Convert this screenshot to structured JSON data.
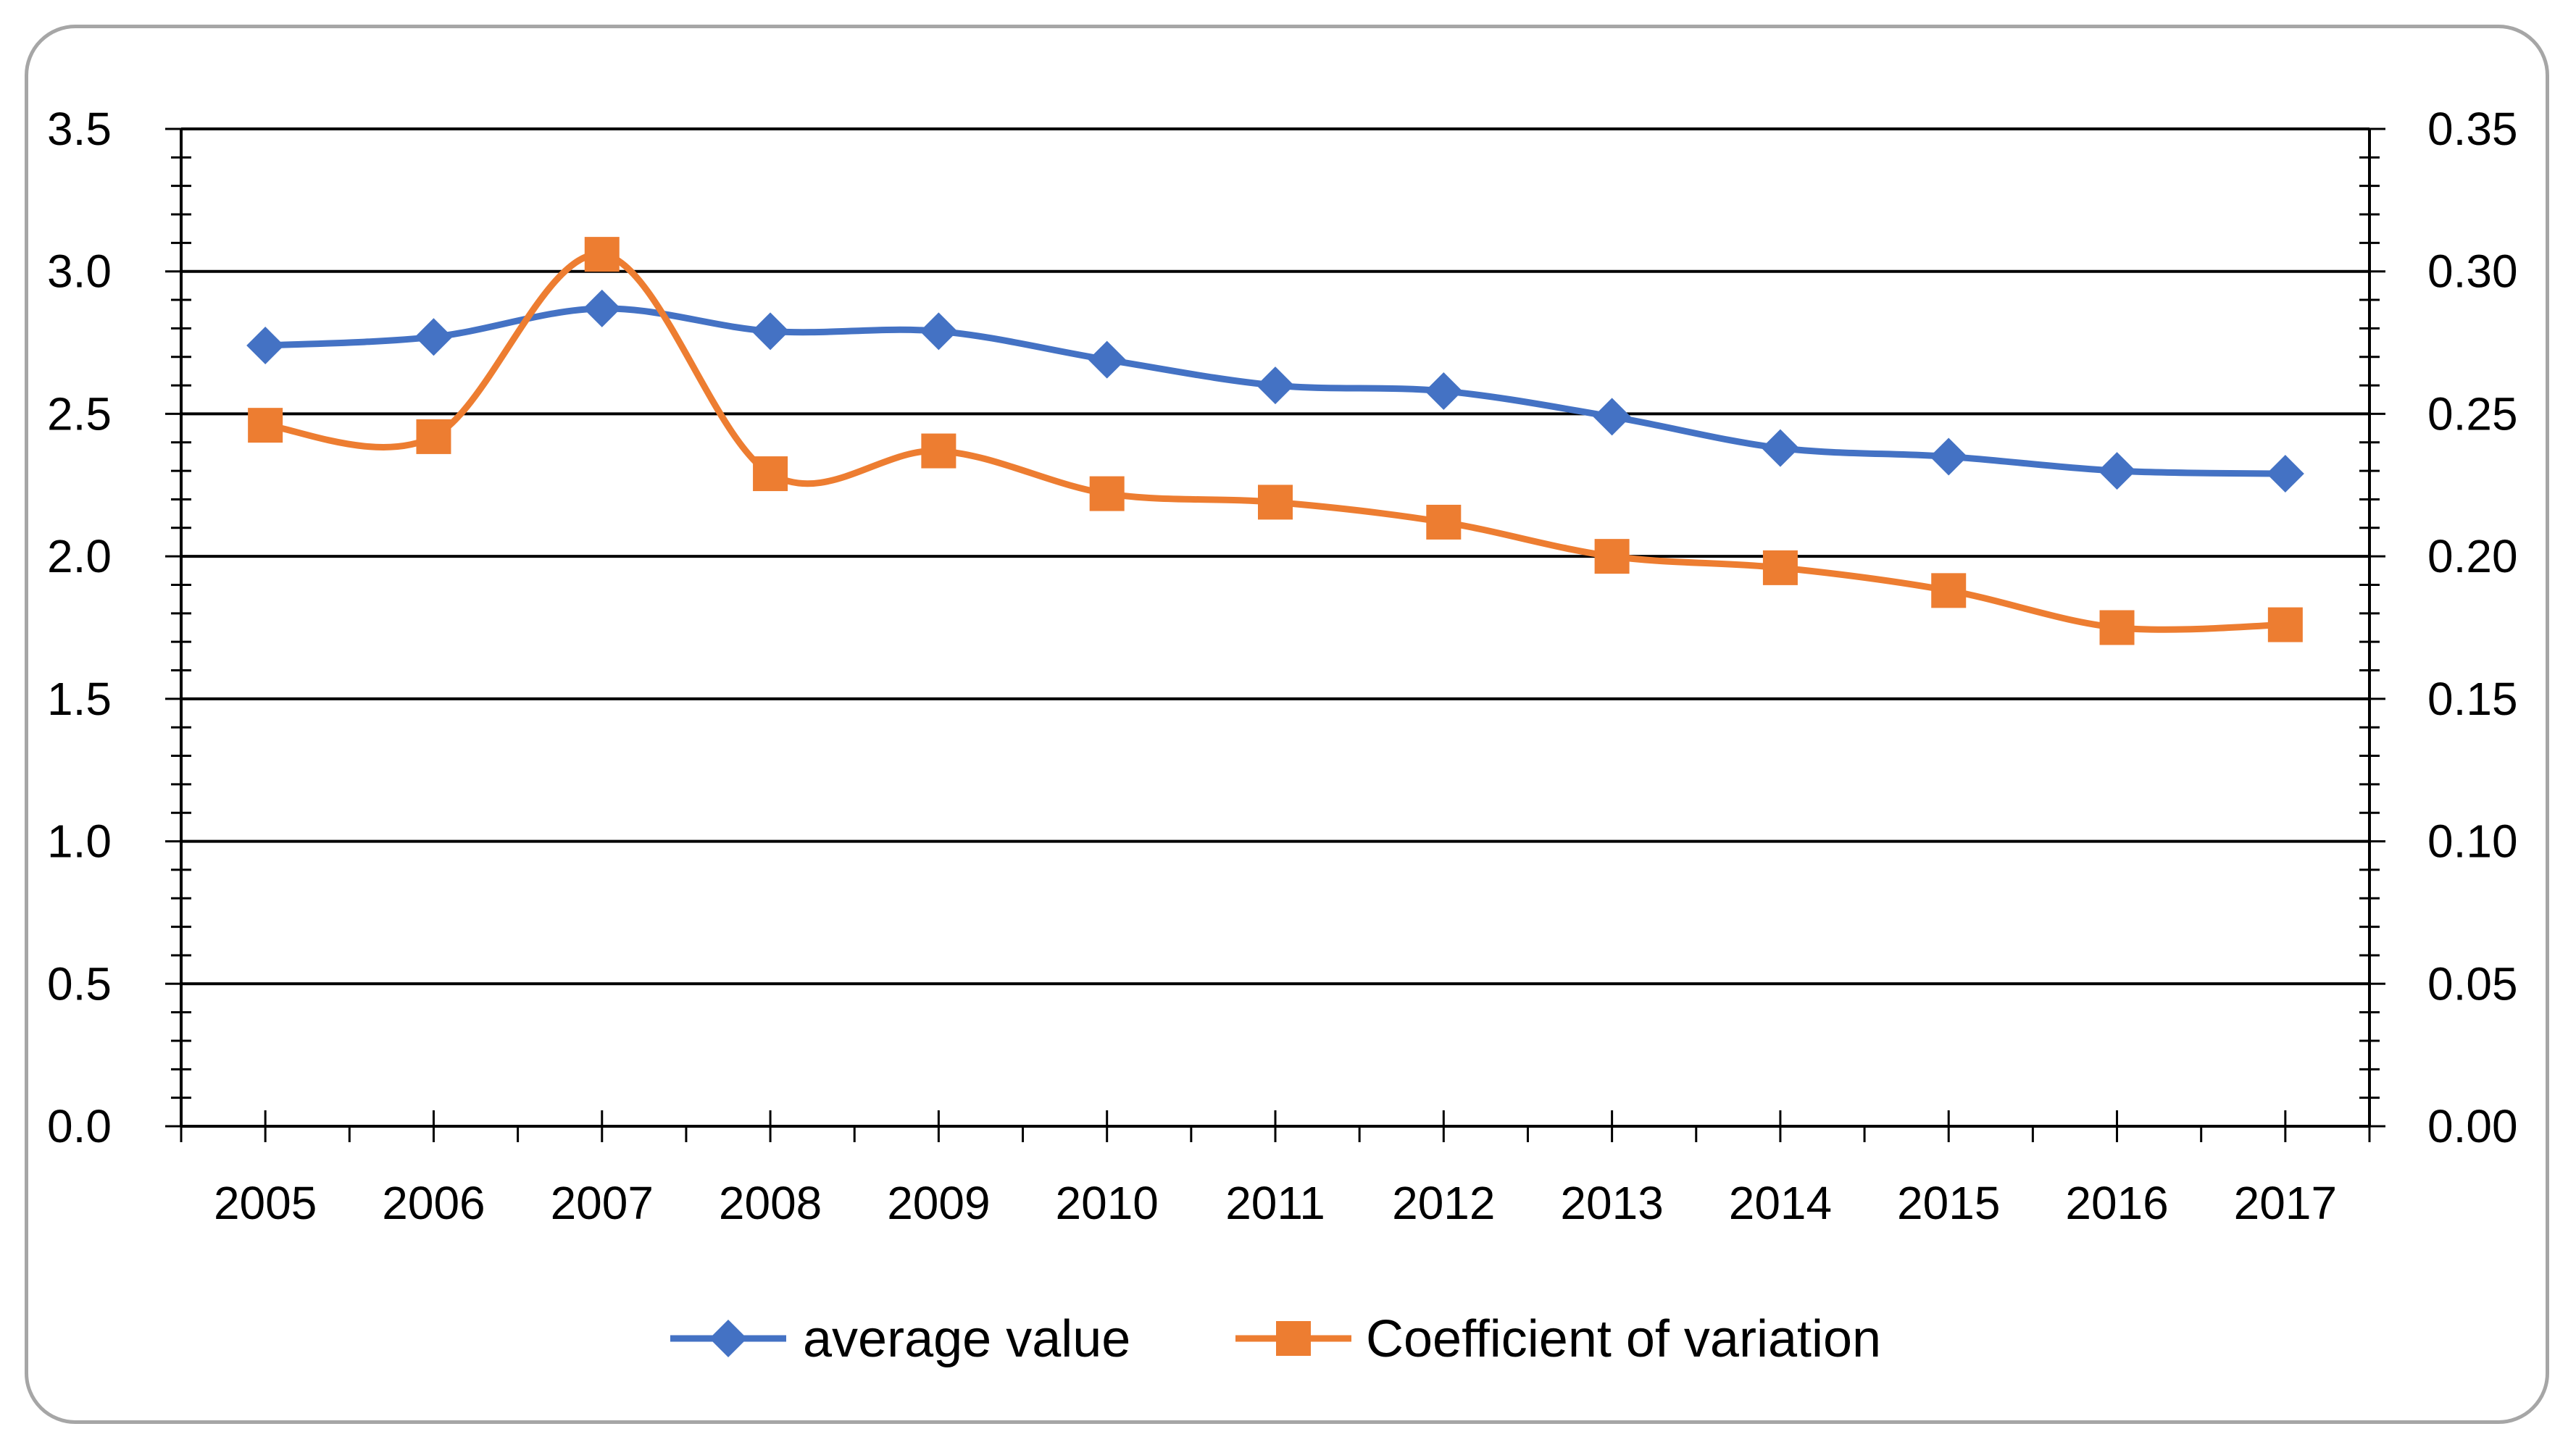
{
  "chart_data": {
    "type": "line",
    "title": "",
    "xlabel": "",
    "ylabel": "",
    "y2label": "",
    "categories": [
      "2005",
      "2006",
      "2007",
      "2008",
      "2009",
      "2010",
      "2011",
      "2012",
      "2013",
      "2014",
      "2015",
      "2016",
      "2017"
    ],
    "ylim": [
      0,
      3.5
    ],
    "y2lim": [
      0,
      0.35
    ],
    "yticks": [
      "0.0",
      "0.5",
      "1.0",
      "1.5",
      "2.0",
      "2.5",
      "3.0",
      "3.5"
    ],
    "y2ticks": [
      "0.00",
      "0.05",
      "0.10",
      "0.15",
      "0.20",
      "0.25",
      "0.30",
      "0.35"
    ],
    "grid": true,
    "legend_position": "bottom",
    "series": [
      {
        "name": "average value",
        "axis": "left",
        "marker": "diamond",
        "color": "#4472c4",
        "values": [
          2.74,
          2.77,
          2.87,
          2.79,
          2.79,
          2.69,
          2.6,
          2.58,
          2.49,
          2.38,
          2.35,
          2.3,
          2.29
        ]
      },
      {
        "name": "Coefficient of variation",
        "axis": "right",
        "marker": "square",
        "color": "#ed7d31",
        "values": [
          0.246,
          0.242,
          0.306,
          0.229,
          0.237,
          0.222,
          0.219,
          0.212,
          0.2,
          0.196,
          0.188,
          0.175,
          0.176
        ]
      }
    ]
  }
}
